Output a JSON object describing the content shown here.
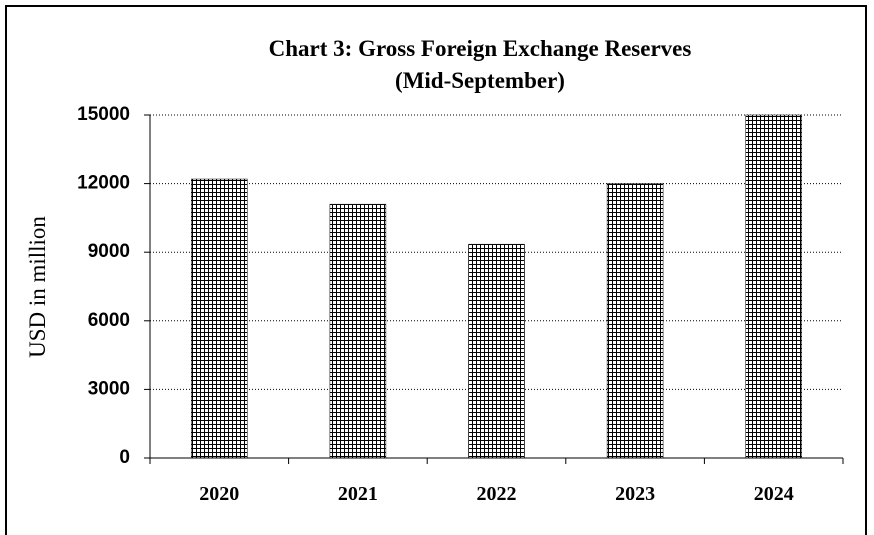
{
  "chart_data": {
    "type": "bar",
    "title": [
      "Chart  3: Gross Foreign Exchange Reserves",
      "(Mid-September)"
    ],
    "y_label": "USD in million",
    "categories": [
      "2020",
      "2021",
      "2022",
      "2023",
      "2024"
    ],
    "values": [
      12200,
      11100,
      9350,
      12000,
      15000
    ],
    "color": "#000000",
    "ylim": [
      0,
      15000
    ],
    "yticks": [
      0,
      3000,
      6000,
      9000,
      12000,
      15000
    ],
    "grid": true
  }
}
